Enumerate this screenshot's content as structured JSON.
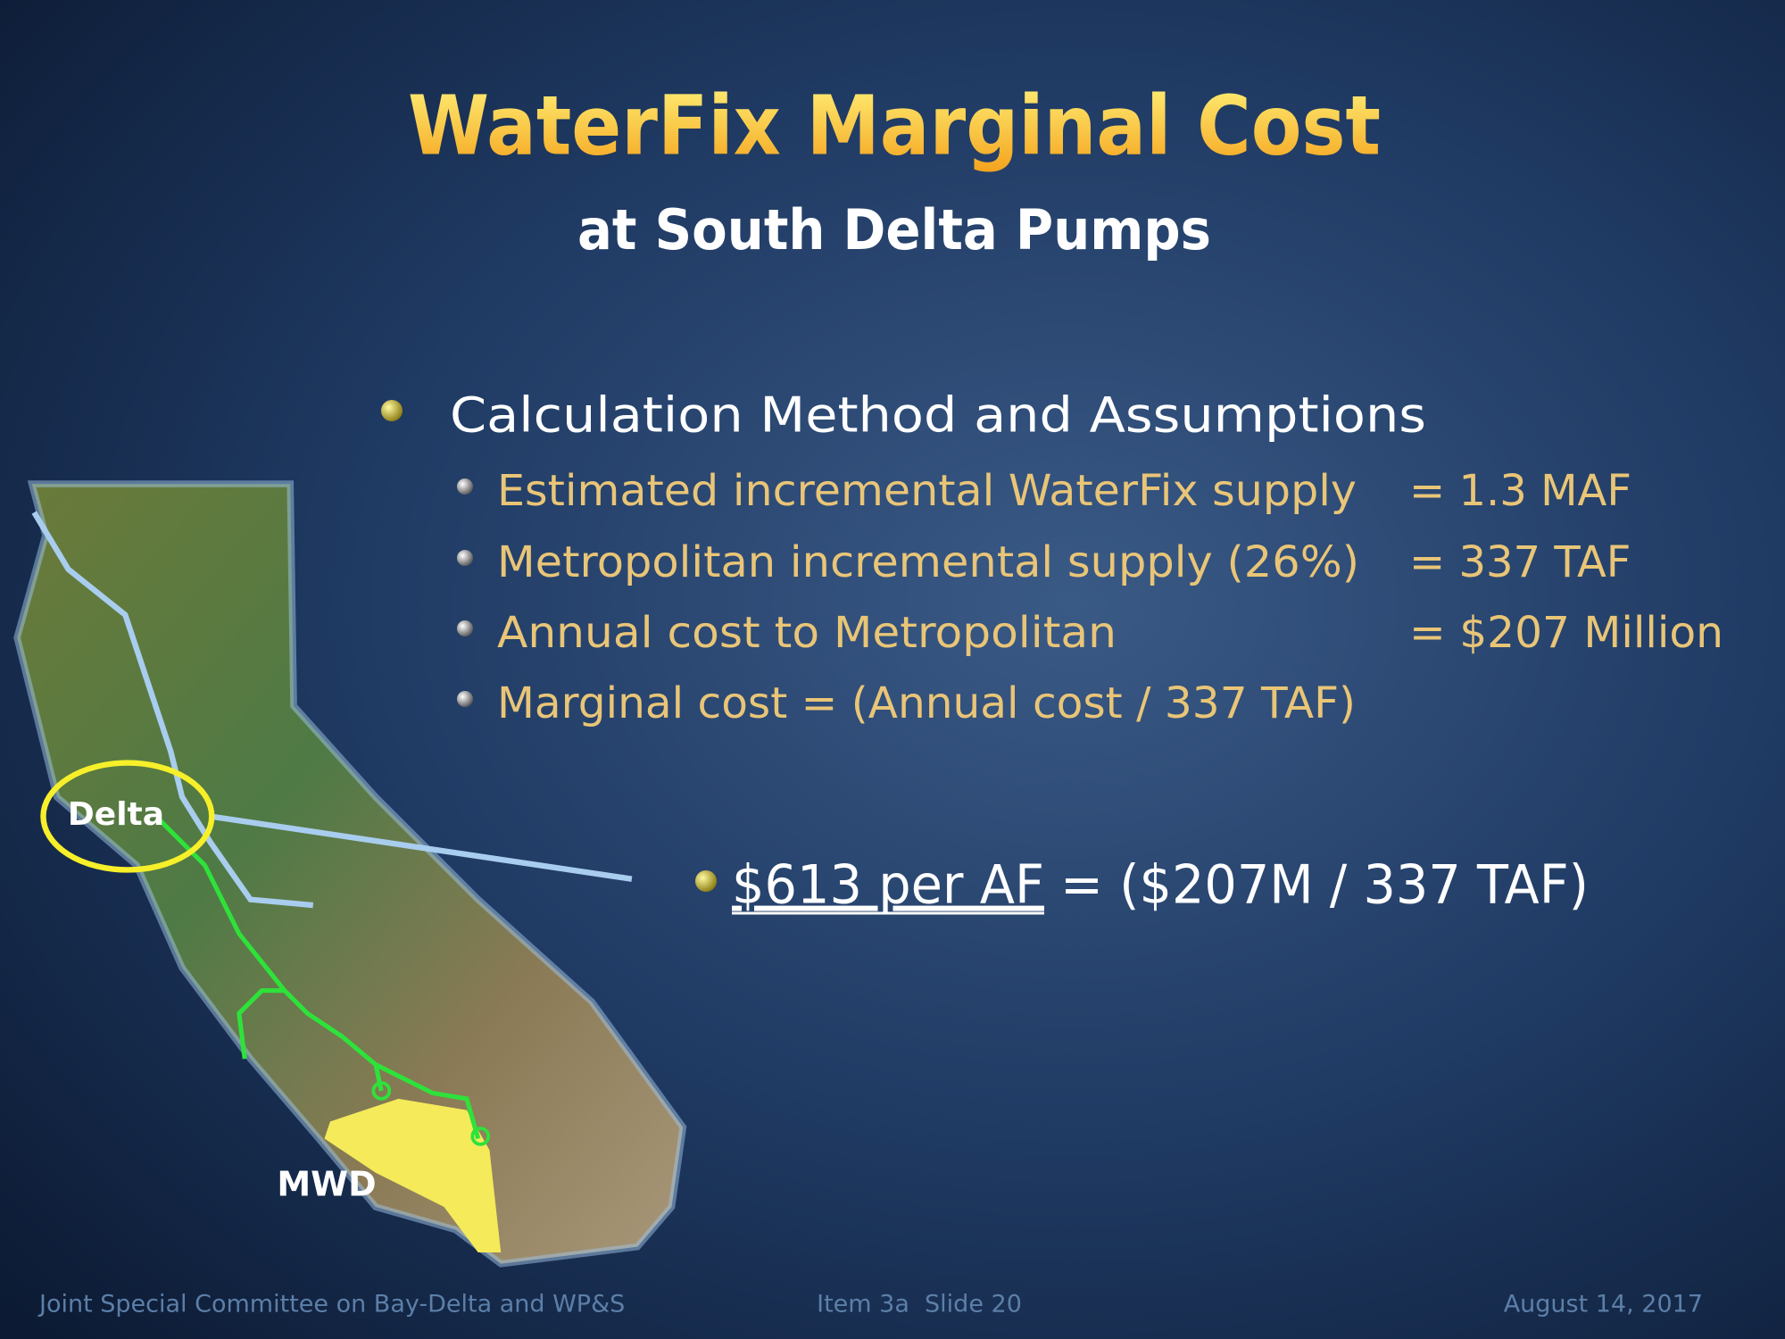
{
  "title": "WaterFix Marginal Cost",
  "subtitle": "at South Delta Pumps",
  "bullets": {
    "heading": "Calculation Method and Assumptions",
    "items": [
      {
        "label": "Estimated incremental WaterFix supply",
        "value": "= 1.3 MAF"
      },
      {
        "label": "Metropolitan incremental supply (26%)",
        "value": "= 337 TAF"
      },
      {
        "label": "Annual cost to Metropolitan",
        "value": "= $207 Million"
      },
      {
        "label": "Marginal cost = (Annual cost / 337 TAF)"
      }
    ]
  },
  "result": {
    "emphasis": "$613 per AF",
    "rest": "= ($207M / 337 TAF)"
  },
  "map": {
    "labels": [
      "Delta",
      "MWD"
    ]
  },
  "footer": {
    "left": "Joint Special Committee on Bay-Delta and WP&S",
    "center": "Item 3a  Slide 20",
    "right": "August 14, 2017"
  }
}
